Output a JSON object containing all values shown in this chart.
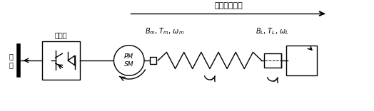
{
  "title_text": "充放储能运行",
  "label_converter": "变流器",
  "label_grid": "电\n网",
  "label_motor": "PM\nSM",
  "label_bm": "$B_{m}$, $T_{m}$, $\\omega_{m}$",
  "label_bl": "$B_L$, $T_L$, $\\omega_L$",
  "bg_color": "#ffffff",
  "line_color": "#000000",
  "fig_width": 5.24,
  "fig_height": 1.56,
  "dpi": 100
}
